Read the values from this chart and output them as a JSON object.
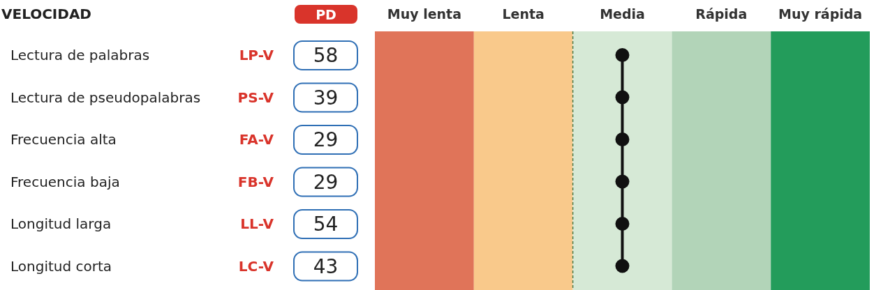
{
  "chart_data": {
    "type": "other",
    "title": "VELOCIDAD",
    "categories": [
      "Lectura de palabras",
      "Lectura de pseudopalabras",
      "Frecuencia alta",
      "Frecuencia baja",
      "Longitud larga",
      "Longitud corta"
    ],
    "values": [
      58,
      39,
      29,
      29,
      54,
      43
    ],
    "data_labels": true,
    "annotations": [
      "PD",
      "LP-V",
      "PS-V",
      "FA-V",
      "FB-V",
      "LL-V",
      "LC-V",
      "Muy lenta",
      "Lenta",
      "Media",
      "Rápida",
      "Muy rápida"
    ]
  }
}
